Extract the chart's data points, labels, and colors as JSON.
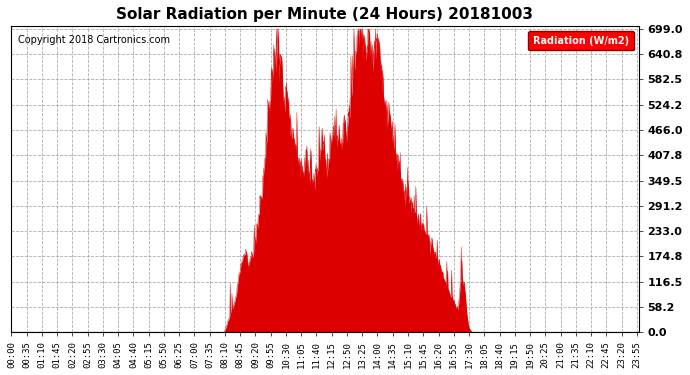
{
  "title": "Solar Radiation per Minute (24 Hours) 20181003",
  "copyright_text": "Copyright 2018 Cartronics.com",
  "legend_label": "Radiation (W/m2)",
  "y_ticks": [
    0.0,
    58.2,
    116.5,
    174.8,
    233.0,
    291.2,
    349.5,
    407.8,
    466.0,
    524.2,
    582.5,
    640.8,
    699.0
  ],
  "y_max": 699.0,
  "y_min": 0.0,
  "fill_color": "#dd0000",
  "line_color": "#dd0000",
  "background_color": "#ffffff",
  "grid_color": "#999999",
  "title_fontsize": 11,
  "copyright_fontsize": 7,
  "axis_label_fontsize": 6.5,
  "ytick_fontsize": 8,
  "total_minutes": 1440,
  "x_tick_interval_minutes": 35,
  "x_tick_labels": [
    "00:00",
    "00:35",
    "01:10",
    "01:45",
    "02:20",
    "02:55",
    "03:30",
    "04:05",
    "04:40",
    "05:15",
    "05:50",
    "06:25",
    "07:00",
    "07:35",
    "08:10",
    "08:45",
    "09:20",
    "09:55",
    "10:30",
    "11:05",
    "11:40",
    "12:15",
    "12:50",
    "13:25",
    "14:00",
    "14:35",
    "15:10",
    "15:45",
    "16:20",
    "16:55",
    "17:30",
    "18:05",
    "18:40",
    "19:15",
    "19:50",
    "20:25",
    "21:00",
    "21:35",
    "22:10",
    "22:45",
    "23:20",
    "23:55"
  ]
}
